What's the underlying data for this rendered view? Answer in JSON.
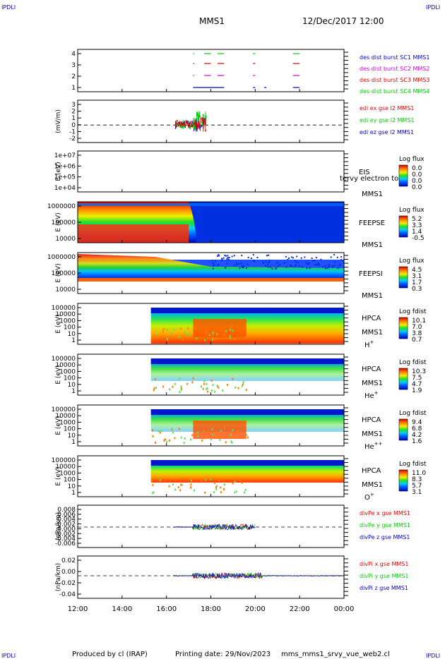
{
  "corner_labels": {
    "tl": "IPDLI",
    "tr": "IPDLI",
    "bl": "IPDLI",
    "br": "IPDLI"
  },
  "header": {
    "mission": "MMS1",
    "datetime": "12/Dec/2017 12:00"
  },
  "footer": {
    "produced": "Produced by cl (IRAP)",
    "printing": "Printing date: 29/Nov/2023",
    "script": "mms_mms1_srvy_vue_web2.cl"
  },
  "x_ticks": [
    "12:00",
    "14:00",
    "16:00",
    "18:00",
    "20:00",
    "22:00",
    "00:00"
  ],
  "colors": {
    "red": "#e00000",
    "green": "#00cc00",
    "blue": "#0000cc",
    "magenta": "#d000d0"
  },
  "panels": [
    {
      "id": "burst",
      "ticks": [
        "4",
        "3",
        "2",
        "1"
      ],
      "ylabel": "",
      "legend": [
        {
          "text": "des dist burst SC1 MMS1",
          "color": "#0000cc"
        },
        {
          "text": "des dist burst SC2 MMS2",
          "color": "#d000d0"
        },
        {
          "text": "des dist burst SC3 MMS3",
          "color": "#e00000"
        },
        {
          "text": "des dist burst SC4 MMS4",
          "color": "#00cc00"
        }
      ]
    },
    {
      "id": "edi",
      "ticks": [
        "3",
        "2",
        "1",
        "0",
        "-1",
        "-2"
      ],
      "ylabel": "(mV/m)",
      "legend": [
        {
          "text": "edi ex gse l2 MMS1",
          "color": "#e00000"
        },
        {
          "text": "edi ey gse l2 MMS1",
          "color": "#00cc00"
        },
        {
          "text": "edi ez gse l2 MMS1",
          "color": "#0000cc"
        }
      ]
    },
    {
      "id": "eis",
      "ticks": [
        "1e+07",
        "1e+06",
        "1e+05",
        "1e+04"
      ],
      "ylabel": "E (eV)",
      "name": "EIS",
      "sc": "MMS1",
      "overflow": "tervy electron to",
      "cbar": {
        "title": "Log flux",
        "values": [
          "0.0",
          "0.0",
          "0.0",
          "0.0"
        ]
      }
    },
    {
      "id": "feepse",
      "ticks": [
        "1000000",
        "100000",
        "10000"
      ],
      "ylabel": "E (eV)",
      "name": "FEEPSE",
      "sc": "MMS1",
      "cbar": {
        "title": "Log flux",
        "values": [
          "5.2",
          "3.3",
          "1.4",
          "-0.5"
        ]
      }
    },
    {
      "id": "feepsi",
      "ticks": [
        "1000000",
        "100000",
        "10000"
      ],
      "ylabel": "E (eV)",
      "name": "FEEPSI",
      "sc": "MMS1",
      "cbar": {
        "title": "Log flux",
        "values": [
          "4.5",
          "3.1",
          "1.7",
          "0.3"
        ]
      }
    },
    {
      "id": "hpca_h",
      "ticks": [
        "100000",
        "10000",
        "1000",
        "100",
        "10",
        "1"
      ],
      "ylabel": "E (eV)",
      "name": "HPCA",
      "sc": "MMS1",
      "species": "H",
      "charge": "+",
      "cbar": {
        "title": "Log fdist",
        "values": [
          "10.1",
          "7.0",
          "3.8",
          "0.7"
        ]
      }
    },
    {
      "id": "hpca_he",
      "ticks": [
        "100000",
        "10000",
        "1000",
        "100",
        "10",
        "1"
      ],
      "ylabel": "E (eV)",
      "name": "HPCA",
      "sc": "MMS1",
      "species": "He",
      "charge": "+",
      "cbar": {
        "title": "Log fdist",
        "values": [
          "10.3",
          "7.5",
          "4.7",
          "1.9"
        ]
      }
    },
    {
      "id": "hpca_hepp",
      "ticks": [
        "100000",
        "10000",
        "1000",
        "100",
        "10",
        "1"
      ],
      "ylabel": "E (eV)",
      "name": "HPCA",
      "sc": "MMS1",
      "species": "He",
      "charge": "++",
      "cbar": {
        "title": "Log fdist",
        "values": [
          "9.4",
          "6.8",
          "4.2",
          "1.6"
        ]
      }
    },
    {
      "id": "hpca_o",
      "ticks": [
        "100000",
        "10000",
        "1000",
        "100",
        "10",
        "1"
      ],
      "ylabel": "E (eV)",
      "name": "HPCA",
      "sc": "MMS1",
      "species": "O",
      "charge": "+",
      "cbar": {
        "title": "Log fdist",
        "values": [
          "11.0",
          "8.3",
          "5.7",
          "3.1"
        ]
      }
    },
    {
      "id": "divpe",
      "ticks": [
        "0.008",
        "0.006",
        "0.004",
        "0.002",
        "0.000",
        "-0.002",
        "-0.004",
        "-0.006"
      ],
      "ylabel": "(nPa/km)",
      "legend": [
        {
          "text": "divPe x gse MMS1",
          "color": "#e00000"
        },
        {
          "text": "divPe y gse MMS1",
          "color": "#00cc00"
        },
        {
          "text": "divPe z gse MMS1",
          "color": "#0000cc"
        }
      ]
    },
    {
      "id": "divpi",
      "ticks": [
        "0.02",
        "0.00",
        "-0.02",
        "-0.04"
      ],
      "ylabel": "(nPa/km)",
      "legend": [
        {
          "text": "divPi x gse MMS1",
          "color": "#e00000"
        },
        {
          "text": "divPi y gse MMS1",
          "color": "#00cc00"
        },
        {
          "text": "divPi z gse MMS1",
          "color": "#0000cc"
        }
      ]
    }
  ],
  "chart_data": {
    "type": "line",
    "x_range": [
      "12/Dec/2017 12:00",
      "13/Dec/2017 00:00"
    ],
    "burst_intervals_hours": {
      "MMS1": [
        [
          17.2,
          18.6
        ],
        [
          19.9,
          20.0
        ],
        [
          20.4,
          20.5
        ],
        [
          21.7,
          22.0
        ]
      ],
      "MMS2": [
        [
          17.2,
          17.25
        ],
        [
          17.7,
          18.0
        ],
        [
          18.3,
          18.6
        ],
        [
          19.9,
          20.0
        ],
        [
          21.7,
          22.0
        ]
      ],
      "MMS3": [
        [
          17.2,
          17.25
        ],
        [
          17.7,
          18.0
        ],
        [
          18.3,
          18.6
        ],
        [
          19.9,
          20.0
        ],
        [
          21.7,
          22.0
        ]
      ],
      "MMS4": [
        [
          17.2,
          17.25
        ],
        [
          17.7,
          18.0
        ],
        [
          18.3,
          18.6
        ],
        [
          19.9,
          20.0
        ],
        [
          21.7,
          22.0
        ]
      ]
    },
    "edi_ylim": [
      -2,
      3
    ],
    "edi_coverage_hours": [
      16.4,
      17.8
    ],
    "feepse_ylim": [
      10000,
      1000000
    ],
    "feepsi_ylim": [
      10000,
      1000000
    ],
    "eis_ylim": [
      10000,
      10000000
    ],
    "hpca_ylim": [
      1,
      100000
    ],
    "hpca_start_hours": 15.3,
    "divpe_ylim": [
      -0.006,
      0.008
    ],
    "divpi_ylim": [
      -0.04,
      0.02
    ],
    "divp_coverage_hours": [
      16.3,
      24.0
    ]
  }
}
